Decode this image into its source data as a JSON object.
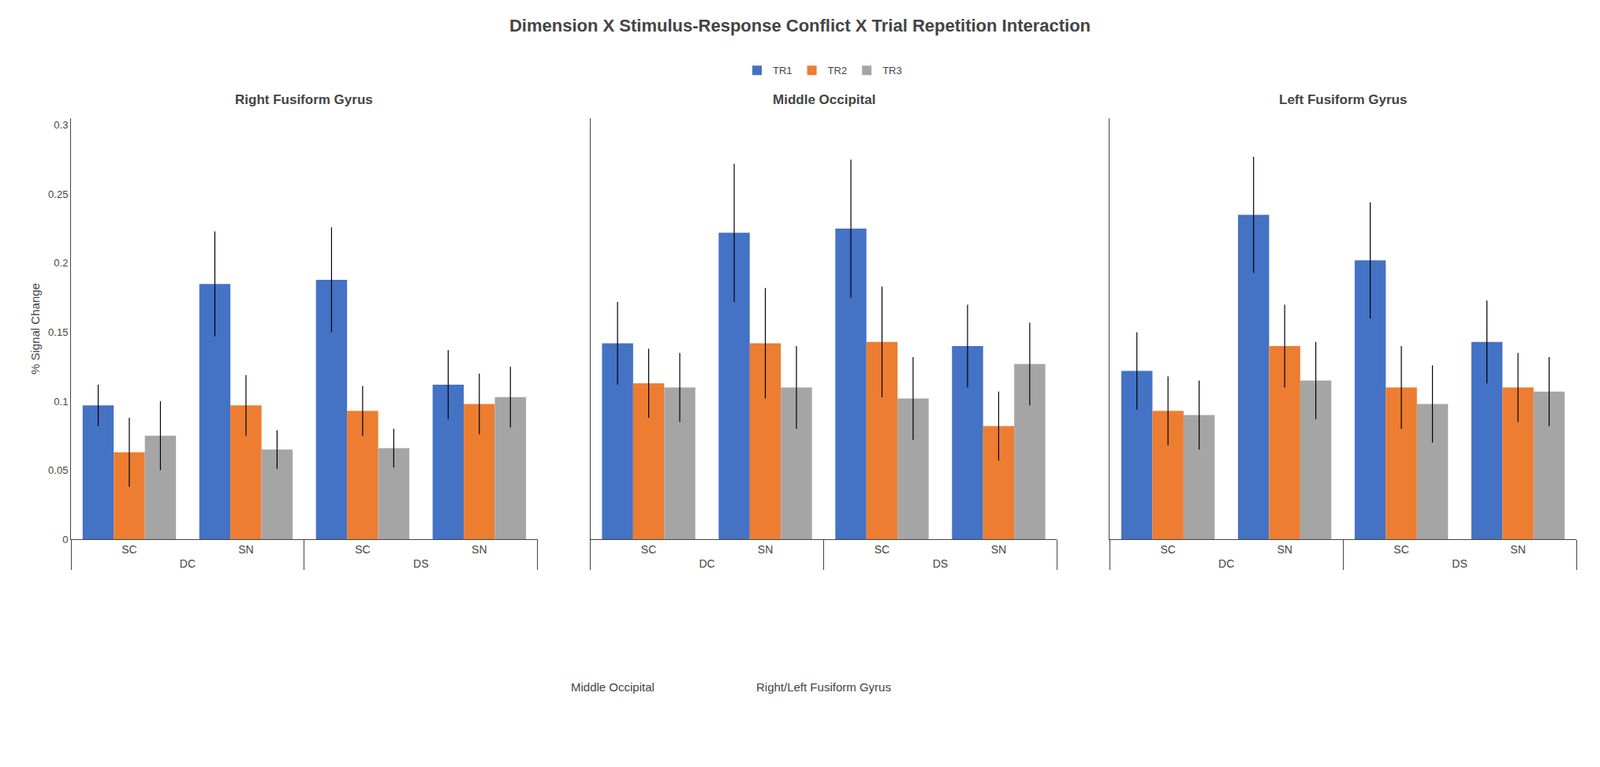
{
  "title": "Dimension X Stimulus-Response Conflict X Trial Repetition Interaction",
  "annotations": [
    "Middle Occipital",
    "Right/Left Fusiform Gyrus"
  ],
  "chart_data": [
    {
      "type": "bar",
      "title": "Right Fusiform Gyrus",
      "ylabel": "% Signal Change",
      "categories": [
        "SC",
        "SN",
        "SC",
        "SN"
      ],
      "category_groups": [
        "DC",
        "DC",
        "DS",
        "DS"
      ],
      "series": [
        {
          "name": "TR1",
          "color": "#4472C4",
          "values": [
            0.097,
            0.185,
            0.188,
            0.112
          ],
          "errors": [
            0.015,
            0.038,
            0.038,
            0.025
          ]
        },
        {
          "name": "TR2",
          "color": "#ED7D31",
          "values": [
            0.063,
            0.097,
            0.093,
            0.098
          ],
          "errors": [
            0.025,
            0.022,
            0.018,
            0.022
          ]
        },
        {
          "name": "TR3",
          "color": "#A5A5A5",
          "values": [
            0.075,
            0.065,
            0.066,
            0.103
          ],
          "errors": [
            0.025,
            0.014,
            0.014,
            0.022
          ]
        }
      ],
      "ylim": [
        0,
        0.305
      ],
      "yticks": [
        0,
        0.05,
        0.1,
        0.15,
        0.2,
        0.25,
        0.3
      ],
      "grid": false,
      "legend": "top"
    },
    {
      "type": "bar",
      "title": "Middle Occipital",
      "categories": [
        "SC",
        "SN",
        "SC",
        "SN"
      ],
      "category_groups": [
        "DC",
        "DC",
        "DS",
        "DS"
      ],
      "series": [
        {
          "name": "TR1",
          "color": "#4472C4",
          "values": [
            0.142,
            0.222,
            0.225,
            0.14
          ],
          "errors": [
            0.03,
            0.05,
            0.05,
            0.03
          ]
        },
        {
          "name": "TR2",
          "color": "#ED7D31",
          "values": [
            0.113,
            0.142,
            0.143,
            0.082
          ],
          "errors": [
            0.025,
            0.04,
            0.04,
            0.025
          ]
        },
        {
          "name": "TR3",
          "color": "#A5A5A5",
          "values": [
            0.11,
            0.11,
            0.102,
            0.127
          ],
          "errors": [
            0.025,
            0.03,
            0.03,
            0.03
          ]
        }
      ],
      "ylim": [
        0,
        0.305
      ],
      "yticks": [
        0,
        0.05,
        0.1,
        0.15,
        0.2,
        0.25,
        0.3
      ],
      "grid": false,
      "tick_labels": "x"
    },
    {
      "type": "bar",
      "title": "Left Fusiform Gyrus",
      "categories": [
        "SC",
        "SN",
        "SC",
        "SN"
      ],
      "category_groups": [
        "DC",
        "DC",
        "DS",
        "DS"
      ],
      "series": [
        {
          "name": "TR1",
          "color": "#4472C4",
          "values": [
            0.122,
            0.235,
            0.202,
            0.143
          ],
          "errors": [
            0.028,
            0.042,
            0.042,
            0.03
          ]
        },
        {
          "name": "TR2",
          "color": "#ED7D31",
          "values": [
            0.093,
            0.14,
            0.11,
            0.11
          ],
          "errors": [
            0.025,
            0.03,
            0.03,
            0.025
          ]
        },
        {
          "name": "TR3",
          "color": "#A5A5A5",
          "values": [
            0.09,
            0.115,
            0.098,
            0.107
          ],
          "errors": [
            0.025,
            0.028,
            0.028,
            0.025
          ]
        }
      ],
      "ylim": [
        0,
        0.305
      ],
      "yticks": [
        0,
        0.05,
        0.1,
        0.15,
        0.2,
        0.25,
        0.3
      ],
      "grid": false,
      "tick_labels": "x"
    }
  ]
}
